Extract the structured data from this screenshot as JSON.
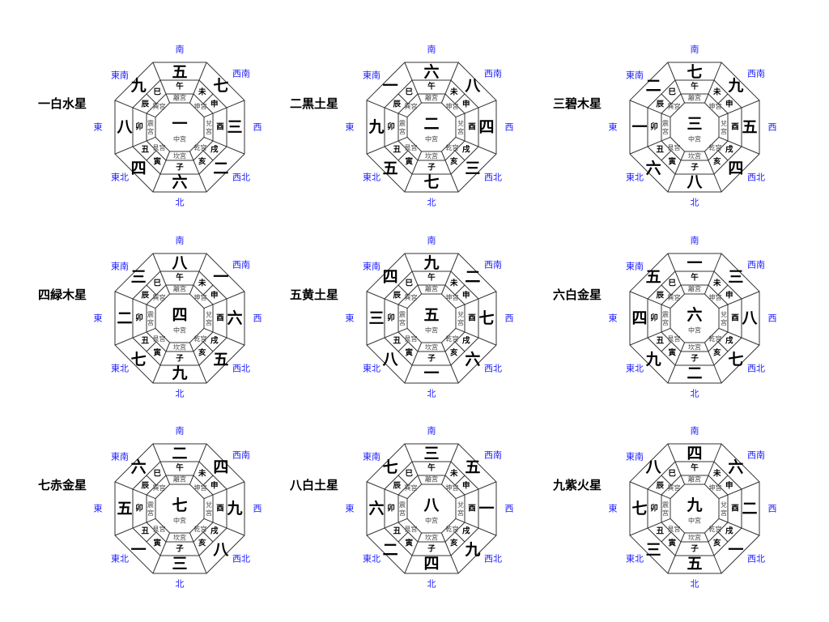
{
  "directions": {
    "S": "南",
    "N": "北",
    "E": "東",
    "W": "西",
    "SE": "東南",
    "SW": "西南",
    "NE": "東北",
    "NW": "西北"
  },
  "branches": {
    "S": [
      "午"
    ],
    "SW": [
      "未",
      "申"
    ],
    "W": [
      "酉"
    ],
    "NW": [
      "戌",
      "亥"
    ],
    "N": [
      "子"
    ],
    "NE": [
      "丑",
      "寅"
    ],
    "E": [
      "卯"
    ],
    "SE": [
      "巳",
      "辰"
    ]
  },
  "palaces": {
    "S": "離宮",
    "SW": "坤宮",
    "W": "兌宮",
    "NW": "乾宮",
    "N": "坎宮",
    "NE": "艮宮",
    "E": "震宮",
    "SE": "巽宮",
    "C": "中宮"
  },
  "charts": [
    {
      "title": "一白水星",
      "stars": {
        "C": "一",
        "NW": "二",
        "W": "三",
        "NE": "四",
        "S": "五",
        "N": "六",
        "SW": "七",
        "E": "八",
        "SE": "九"
      }
    },
    {
      "title": "二黒土星",
      "stars": {
        "C": "二",
        "NW": "三",
        "W": "四",
        "NE": "五",
        "S": "六",
        "N": "七",
        "SW": "八",
        "E": "九",
        "SE": "一"
      }
    },
    {
      "title": "三碧木星",
      "stars": {
        "C": "三",
        "NW": "四",
        "W": "五",
        "NE": "六",
        "S": "七",
        "N": "八",
        "SW": "九",
        "E": "一",
        "SE": "二"
      }
    },
    {
      "title": "四緑木星",
      "stars": {
        "C": "四",
        "NW": "五",
        "W": "六",
        "NE": "七",
        "S": "八",
        "N": "九",
        "SW": "一",
        "E": "二",
        "SE": "三"
      }
    },
    {
      "title": "五黄土星",
      "stars": {
        "C": "五",
        "NW": "六",
        "W": "七",
        "NE": "八",
        "S": "九",
        "N": "一",
        "SW": "二",
        "E": "三",
        "SE": "四"
      }
    },
    {
      "title": "六白金星",
      "stars": {
        "C": "六",
        "NW": "七",
        "W": "八",
        "NE": "九",
        "S": "一",
        "N": "二",
        "SW": "三",
        "E": "四",
        "SE": "五"
      }
    },
    {
      "title": "七赤金星",
      "stars": {
        "C": "七",
        "NW": "八",
        "W": "九",
        "NE": "一",
        "S": "二",
        "N": "三",
        "SW": "四",
        "E": "五",
        "SE": "六"
      }
    },
    {
      "title": "八白土星",
      "stars": {
        "C": "八",
        "NW": "九",
        "W": "一",
        "NE": "二",
        "S": "三",
        "N": "四",
        "SW": "五",
        "E": "六",
        "SE": "七"
      }
    },
    {
      "title": "九紫火星",
      "stars": {
        "C": "九",
        "NW": "一",
        "W": "二",
        "NE": "三",
        "S": "四",
        "N": "五",
        "SW": "六",
        "E": "七",
        "SE": "八"
      }
    }
  ]
}
